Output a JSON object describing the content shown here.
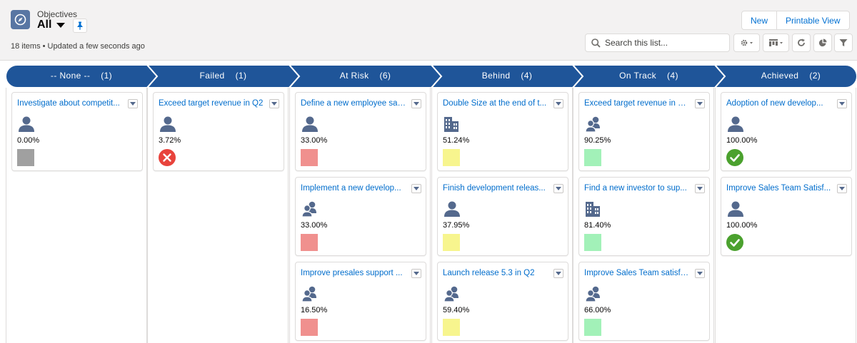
{
  "header": {
    "object_label": "Objectives",
    "view_name": "All",
    "status": "18 items • Updated a few seconds ago",
    "buttons": {
      "new": "New",
      "printable": "Printable View"
    },
    "search_placeholder": "Search this list..."
  },
  "colors": {
    "path_blue": "#1f5599",
    "link": "#006dcc",
    "status_grey": "#a0a0a0",
    "status_red": "#f0908e",
    "status_yellow": "#f7f58e",
    "status_green": "#a2f1b8",
    "failed_icon": "#e8433c",
    "achieved_icon": "#4ba12e",
    "owner_icon": "#54698d"
  },
  "stages": [
    {
      "name": "-- None --",
      "count": "(1)"
    },
    {
      "name": "Failed",
      "count": "(1)"
    },
    {
      "name": "At Risk",
      "count": "(6)"
    },
    {
      "name": "Behind",
      "count": "(4)"
    },
    {
      "name": "On Track",
      "count": "(4)"
    },
    {
      "name": "Achieved",
      "count": "(2)"
    }
  ],
  "columns": [
    {
      "cards": [
        {
          "title": "Investigate about competit...",
          "owner_icon": "user-icon",
          "pct": "0.00%",
          "status": "grey-square"
        }
      ]
    },
    {
      "cards": [
        {
          "title": "Exceed target revenue in Q2",
          "owner_icon": "user-icon",
          "pct": "3.72%",
          "status": "failed-icon"
        }
      ]
    },
    {
      "cards": [
        {
          "title": "Define a new employee sat...",
          "owner_icon": "user-icon",
          "pct": "33.00%",
          "status": "red-square"
        },
        {
          "title": "Implement a new develop...",
          "owner_icon": "group-icon",
          "pct": "33.00%",
          "status": "red-square"
        },
        {
          "title": "Improve presales support ...",
          "owner_icon": "group-icon",
          "pct": "16.50%",
          "status": "red-square"
        }
      ]
    },
    {
      "cards": [
        {
          "title": "Double Size at the end of t...",
          "owner_icon": "building-icon",
          "pct": "51.24%",
          "status": "yellow-square"
        },
        {
          "title": "Finish development releas...",
          "owner_icon": "user-icon",
          "pct": "37.95%",
          "status": "yellow-square"
        },
        {
          "title": "Launch release 5.3 in Q2",
          "owner_icon": "group-icon",
          "pct": "59.40%",
          "status": "yellow-square"
        }
      ]
    },
    {
      "cards": [
        {
          "title": "Exceed target revenue in Q...",
          "owner_icon": "group-icon",
          "pct": "90.25%",
          "status": "green-square"
        },
        {
          "title": "Find a new investor to sup...",
          "owner_icon": "building-icon",
          "pct": "81.40%",
          "status": "green-square"
        },
        {
          "title": "Improve Sales Team satisfa...",
          "owner_icon": "group-icon",
          "pct": "66.00%",
          "status": "green-square"
        }
      ]
    },
    {
      "cards": [
        {
          "title": "Adoption of new develop...",
          "owner_icon": "user-icon",
          "pct": "100.00%",
          "status": "achieved-icon"
        },
        {
          "title": "Improve Sales Team Satisf...",
          "owner_icon": "user-icon",
          "pct": "100.00%",
          "status": "achieved-icon"
        }
      ]
    }
  ]
}
